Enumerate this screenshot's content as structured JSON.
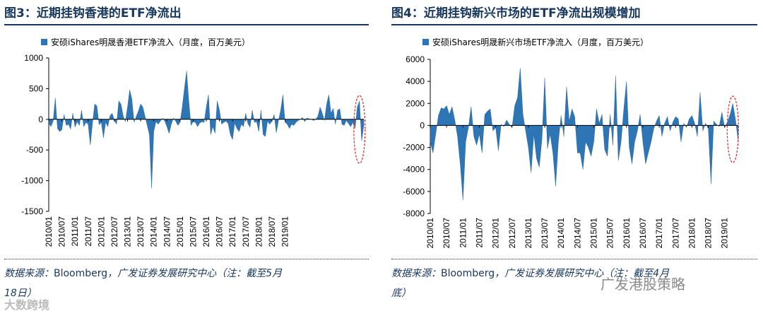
{
  "charts": [
    {
      "title": "图3：近期挂钩香港的ETF净流出",
      "source_label": "数据来源：",
      "source_name": "Bloomberg",
      "source_rest": "，广发证券发展研究中心（注：截至5月",
      "source_rest2": "18日）",
      "watermark": "大数跨境"
    },
    {
      "title": "图4：近期挂钩新兴市场的ETF净流出规模增加",
      "source_label": "数据来源：",
      "source_name": "Bloomberg",
      "source_rest": "，广发证券发展研究中心（注：截至4月",
      "source_rest2": "底）",
      "watermark": "广发港股策略"
    }
  ],
  "chart_data": [
    {
      "type": "area",
      "title": "近期挂钩香港的ETF净流出",
      "legend": "安硕iShares明晟香港ETF净流入（月度，百万美元）",
      "ylim": [
        -1500,
        1000
      ],
      "yticks": [
        1000,
        500,
        0,
        -500,
        -1000,
        -1500
      ],
      "xtick_labels": [
        "2010/01",
        "2010/07",
        "2011/01",
        "2011/07",
        "2012/01",
        "2012/07",
        "2013/01",
        "2013/07",
        "2014/01",
        "2014/07",
        "2015/01",
        "2015/07",
        "2016/01",
        "2016/07",
        "2017/01",
        "2017/07",
        "2018/01",
        "2018/07",
        "2019/01"
      ],
      "color": "#2e75b6",
      "highlight": "last-months-circled",
      "values": [
        -60,
        -120,
        -30,
        350,
        -150,
        -200,
        -170,
        80,
        -100,
        -80,
        -160,
        100,
        -130,
        -40,
        -100,
        150,
        -120,
        -50,
        -80,
        -420,
        -60,
        250,
        220,
        -90,
        -50,
        -300,
        -50,
        -120,
        60,
        100,
        -20,
        -80,
        300,
        250,
        60,
        -40,
        200,
        480,
        330,
        -50,
        50,
        140,
        250,
        200,
        50,
        -100,
        -250,
        -1120,
        -200,
        -40,
        -80,
        -30,
        20,
        -30,
        -120,
        -230,
        -80,
        20,
        -30,
        -100,
        -50,
        200,
        500,
        790,
        300,
        -100,
        -40,
        -50,
        -120,
        -60,
        -40,
        -50,
        200,
        400,
        -250,
        -120,
        -230,
        300,
        150,
        -80,
        -50,
        -30,
        -70,
        -250,
        -330,
        -60,
        -150,
        -200,
        -80,
        -120,
        100,
        -70,
        -130,
        150,
        -50,
        -40,
        -200,
        150,
        -250,
        -280,
        -30,
        -80,
        -30,
        80,
        -220,
        -20,
        150,
        400,
        -50,
        -80,
        -150,
        -80,
        -100,
        -50,
        -20,
        0,
        30,
        -40,
        20,
        10,
        0,
        -20,
        0,
        50,
        200,
        100,
        -20,
        250,
        400,
        100,
        180,
        -80,
        150,
        170,
        -80,
        -100,
        -20,
        -70,
        -120,
        -50,
        -150,
        200,
        300,
        -350,
        -100
      ]
    },
    {
      "type": "area",
      "title": "近期挂钩新兴市场的ETF净流出规模增加",
      "legend": "安硕iShares明晟新兴市场ETF净流入（月度，百万美元）",
      "ylim": [
        -8000,
        6000
      ],
      "yticks": [
        6000,
        4000,
        2000,
        0,
        -2000,
        -4000,
        -6000,
        -8000
      ],
      "xtick_labels": [
        "2010/01",
        "2010/07",
        "2011/01",
        "2011/07",
        "2012/01",
        "2012/07",
        "2013/01",
        "2013/07",
        "2014/01",
        "2014/07",
        "2015/01",
        "2015/07",
        "2016/01",
        "2016/07",
        "2017/01",
        "2017/07",
        "2018/01",
        "2018/07",
        "2019/01"
      ],
      "color": "#2e75b6",
      "highlight": "last-months-circled",
      "values": [
        -1500,
        -2500,
        -800,
        900,
        1600,
        1500,
        1800,
        1000,
        1700,
        500,
        -1000,
        -3500,
        -6800,
        -1500,
        -200,
        1700,
        -1000,
        -1800,
        -800,
        -2500,
        1000,
        1300,
        1500,
        -500,
        -200,
        -2300,
        100,
        -100,
        500,
        100,
        -200,
        1800,
        2500,
        5200,
        1000,
        -500,
        -2000,
        -4300,
        -800,
        -3000,
        -3800,
        -1200,
        4300,
        -2100,
        -800,
        -2500,
        -5500,
        -1500,
        900,
        -1000,
        3500,
        400,
        1500,
        800,
        -2500,
        -2500,
        -4000,
        -1500,
        -2000,
        -2800,
        -1500,
        1500,
        200,
        1000,
        -2200,
        -2800,
        1000,
        -1800,
        4500,
        -3200,
        -1500,
        1500,
        4000,
        -2000,
        -3500,
        -1500,
        -500,
        1000,
        -1500,
        -3500,
        -2500,
        -1500,
        -300,
        400,
        900,
        -1000,
        200,
        800,
        -500,
        300,
        800,
        600,
        -1500,
        200,
        -200,
        600,
        900,
        200,
        -1000,
        3000,
        -500,
        200,
        -300,
        -5300,
        400,
        100,
        -100,
        1200,
        -200,
        300,
        1000,
        2000,
        500,
        -1500
      ]
    }
  ]
}
